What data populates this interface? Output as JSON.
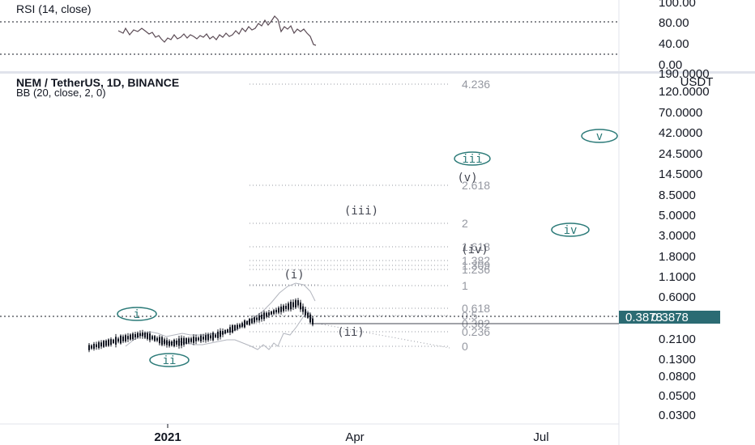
{
  "rsi": {
    "title": "RSI (14, close)",
    "levels": [
      "80.00",
      "40.00",
      "0.00"
    ]
  },
  "symbol": {
    "title": "NEM / TetherUS, 1D, BINANCE",
    "indicator": "BB (20, close, 2, 0)"
  },
  "price_axis": {
    "currency": "USDT",
    "top_label": "190.0000",
    "labels": [
      "120.0000",
      "70.0000",
      "42.0000",
      "24.5000",
      "14.5000",
      "8.5000",
      "5.0000",
      "3.0000",
      "1.8000",
      "1.1000",
      "0.6000",
      "0.3878",
      "0.2100",
      "0.1300",
      "0.0800",
      "0.0500",
      "0.0300"
    ],
    "current_price": "0.3878",
    "current_price_color": "#2b6b73"
  },
  "time_axis": {
    "labels": [
      "2021",
      "Apr",
      "Jul"
    ]
  },
  "fib_levels": [
    "4.236",
    "2.618",
    "2",
    "1.618",
    "1.382",
    "1.309",
    "1.236",
    "1",
    "0.618",
    "0.5",
    "0.382",
    "0.236",
    "0"
  ],
  "waves": {
    "teal": [
      "i",
      "ii",
      "iii",
      "iv",
      "v"
    ],
    "dark": [
      "(i)",
      "(ii)",
      "(iii)",
      "(iv)",
      "(v)"
    ]
  },
  "colors": {
    "wave_teal": "#2b7a78",
    "wave_dark": "#434651",
    "candles": "#131722",
    "bb_band": "#b2b5be",
    "fib": "#9598a1"
  },
  "chart_data": {
    "type": "candlestick",
    "title": "NEM / TetherUS, 1D, BINANCE",
    "y_scale": "log",
    "ylim": [
      0.03,
      190
    ],
    "x_range": [
      "Dec 2020",
      "Jul 2021"
    ],
    "price_points": [
      {
        "date": "Dec 2020",
        "price": 0.155
      },
      {
        "date": "Jan 2021",
        "price": 0.26
      },
      {
        "date": "late Jan 2021",
        "price": 0.18
      },
      {
        "date": "Feb 2021",
        "price": 0.24
      },
      {
        "date": "late Feb 2021",
        "price": 0.55
      },
      {
        "date": "Mar 2021",
        "price": 0.86
      },
      {
        "date": "mid Mar 2021",
        "price": 0.3878
      }
    ],
    "rsi_points": [
      {
        "date": "Dec 2020",
        "value": 62
      },
      {
        "date": "Jan 2021",
        "value": 48
      },
      {
        "date": "Feb 2021",
        "value": 55
      },
      {
        "date": "Mar 2021",
        "value": 92
      },
      {
        "date": "mid Mar 2021",
        "value": 35
      }
    ],
    "rsi_ylim": [
      0,
      100
    ],
    "fibonacci": [
      4.236,
      2.618,
      2,
      1.618,
      1.382,
      1.309,
      1.236,
      1,
      0.618,
      0.5,
      0.382,
      0.236,
      0
    ]
  }
}
